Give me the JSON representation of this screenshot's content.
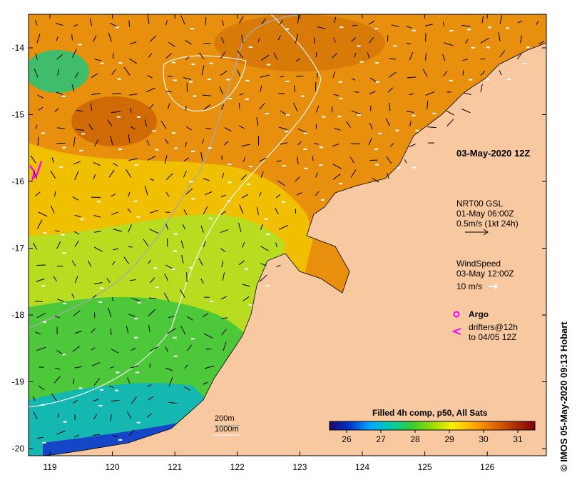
{
  "axes": {
    "x_ticks": [
      "119",
      "120",
      "121",
      "122",
      "123",
      "124",
      "125",
      "126"
    ],
    "y_ticks": [
      "-14",
      "-15",
      "-16",
      "-17",
      "-18",
      "-19",
      "-20"
    ]
  },
  "timestamp": "03-May-2020 12Z",
  "current_legend": {
    "lines": [
      "NRT00 GSL",
      "01-May 06:00Z",
      "0.5m/s (1kt 24h)"
    ]
  },
  "wind_legend": {
    "lines": [
      "WindSpeed",
      "03-May 12:00Z",
      "10 m/s"
    ]
  },
  "argo_label": "Argo",
  "drifter_legend": {
    "lines": [
      "drifters@12h",
      "to 04/05 12Z"
    ]
  },
  "depth_legend": {
    "lines": [
      "200m",
      "1000m"
    ]
  },
  "colorbar": {
    "title": "Filled 4h comp, p50, All Sats",
    "ticks": [
      "26",
      "27",
      "28",
      "29",
      "30",
      "31"
    ],
    "range": [
      25.5,
      31.5
    ],
    "colors": [
      "#1a0a6e",
      "#0033cc",
      "#00aaff",
      "#00ccaa",
      "#33cc33",
      "#99dd00",
      "#ffee00",
      "#ffaa00",
      "#e06a00",
      "#b03000",
      "#800000"
    ]
  },
  "credit": "© IMOS 05-May-2020 09:13 Hobart",
  "colors": {
    "land": "#f8c9a0",
    "coast": "#000000",
    "warm_sea": "#e08a12",
    "bathy_200": "#b0b0b0",
    "bathy_1000": "#ffffff",
    "drifter": "#ff00ff",
    "wind_arrow": "#ffffff",
    "current_arrow": "#000000"
  }
}
